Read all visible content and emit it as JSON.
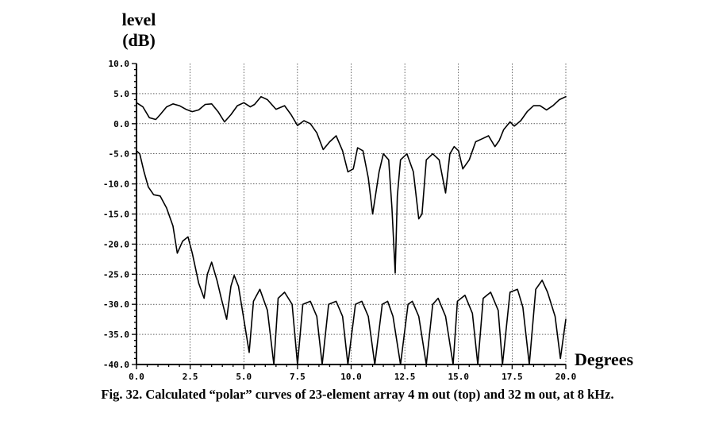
{
  "chart_data": {
    "type": "line",
    "ylabel_line1": "level",
    "ylabel_line2": "(dB)",
    "xlabel": "Degrees",
    "caption": "Fig. 32. Calculated “polar” curves of 23-element array 4 m out (top) and 32 m out, at 8 kHz.",
    "xlim": [
      0,
      20
    ],
    "ylim": [
      -40,
      10
    ],
    "grid": true,
    "x_ticks": [
      0,
      2.5,
      5,
      7.5,
      10,
      12.5,
      15,
      17.5,
      20
    ],
    "x_tick_labels": [
      "0.0",
      "2.5",
      "5.0",
      "7.5",
      "10.0",
      "12.5",
      "15.0",
      "17.5",
      "20.0"
    ],
    "y_ticks": [
      10,
      5,
      0,
      -5,
      -10,
      -15,
      -20,
      -25,
      -30,
      -35,
      -40
    ],
    "y_tick_labels": [
      "10.0",
      "5.0",
      "0.0",
      "-5.0",
      "-10.0",
      "-15.0",
      "-20.0",
      "-25.0",
      "-30.0",
      "-35.0",
      "-40.0"
    ],
    "series": [
      {
        "x": [
          0,
          0.3,
          0.6,
          0.9,
          1.1,
          1.4,
          1.7,
          2.0,
          2.3,
          2.6,
          2.9,
          3.2,
          3.5,
          3.8,
          4.1,
          4.4,
          4.7,
          5.0,
          5.3,
          5.5,
          5.8,
          6.1,
          6.5,
          6.9,
          7.2,
          7.5,
          7.8,
          8.1,
          8.4,
          8.7,
          9.0,
          9.3,
          9.6,
          9.85,
          10.1,
          10.3,
          10.55,
          10.8,
          11.0,
          11.3,
          11.5,
          11.75,
          11.9,
          12.05,
          12.15,
          12.3,
          12.6,
          12.9,
          13.15,
          13.3,
          13.5,
          13.8,
          14.1,
          14.4,
          14.6,
          14.8,
          15.0,
          15.2,
          15.5,
          15.8,
          16.1,
          16.4,
          16.7,
          16.9,
          17.1,
          17.4,
          17.6,
          17.9,
          18.2,
          18.5,
          18.8,
          19.1,
          19.4,
          19.7,
          20.0
        ],
        "values": [
          3.5,
          2.8,
          1.0,
          0.7,
          1.5,
          2.8,
          3.3,
          3.0,
          2.4,
          2.0,
          2.3,
          3.2,
          3.3,
          2.0,
          0.3,
          1.5,
          3.0,
          3.5,
          2.8,
          3.2,
          4.5,
          4.0,
          2.4,
          3.0,
          1.5,
          -0.3,
          0.5,
          0.0,
          -1.5,
          -4.3,
          -3.0,
          -2.0,
          -4.5,
          -8.0,
          -7.5,
          -4.0,
          -4.5,
          -9.0,
          -15.0,
          -8.0,
          -5.0,
          -6.0,
          -14.0,
          -24.8,
          -12.0,
          -6.0,
          -5.0,
          -8.0,
          -15.8,
          -15.0,
          -6.0,
          -5.0,
          -6.0,
          -11.5,
          -5.0,
          -3.8,
          -4.5,
          -7.5,
          -6.0,
          -3.0,
          -2.5,
          -2.0,
          -3.8,
          -2.8,
          -1.0,
          0.3,
          -0.4,
          0.5,
          2.0,
          3.0,
          3.0,
          2.3,
          3.0,
          4.0,
          4.5
        ]
      },
      {
        "x": [
          0,
          0.15,
          0.35,
          0.55,
          0.8,
          1.1,
          1.4,
          1.7,
          1.9,
          2.15,
          2.4,
          2.6,
          2.9,
          3.15,
          3.3,
          3.5,
          3.75,
          3.95,
          4.2,
          4.4,
          4.55,
          4.75,
          5.0,
          5.25,
          5.45,
          5.75,
          6.1,
          6.4,
          6.6,
          6.9,
          7.25,
          7.5,
          7.75,
          8.1,
          8.4,
          8.65,
          8.95,
          9.3,
          9.6,
          9.85,
          10.2,
          10.5,
          10.8,
          11.1,
          11.45,
          11.7,
          11.95,
          12.3,
          12.65,
          12.85,
          13.15,
          13.5,
          13.8,
          14.05,
          14.4,
          14.75,
          14.95,
          15.3,
          15.65,
          15.9,
          16.15,
          16.5,
          16.85,
          17.05,
          17.4,
          17.75,
          18.0,
          18.3,
          18.6,
          18.9,
          19.15,
          19.5,
          19.75,
          20.0
        ],
        "values": [
          -4.5,
          -5.0,
          -8.0,
          -10.5,
          -11.8,
          -12.0,
          -14.0,
          -17.0,
          -21.5,
          -19.5,
          -18.8,
          -21.5,
          -26.5,
          -29.0,
          -25.0,
          -23.0,
          -26.0,
          -29.0,
          -32.5,
          -27.0,
          -25.2,
          -27.0,
          -32.5,
          -38.0,
          -29.5,
          -27.5,
          -31.0,
          -40.0,
          -29.0,
          -28.0,
          -30.0,
          -40.0,
          -30.0,
          -29.5,
          -32.0,
          -40.0,
          -30.0,
          -29.5,
          -32.0,
          -40.0,
          -30.0,
          -29.5,
          -32.0,
          -40.0,
          -30.0,
          -29.5,
          -32.0,
          -40.0,
          -30.0,
          -29.5,
          -32.0,
          -40.0,
          -30.0,
          -29.0,
          -32.0,
          -40.0,
          -29.5,
          -28.5,
          -31.5,
          -40.0,
          -29.0,
          -28.0,
          -31.0,
          -40.0,
          -28.0,
          -27.5,
          -30.5,
          -40.0,
          -27.5,
          -26.0,
          -28.0,
          -32.0,
          -39.0,
          -32.5
        ]
      }
    ]
  }
}
